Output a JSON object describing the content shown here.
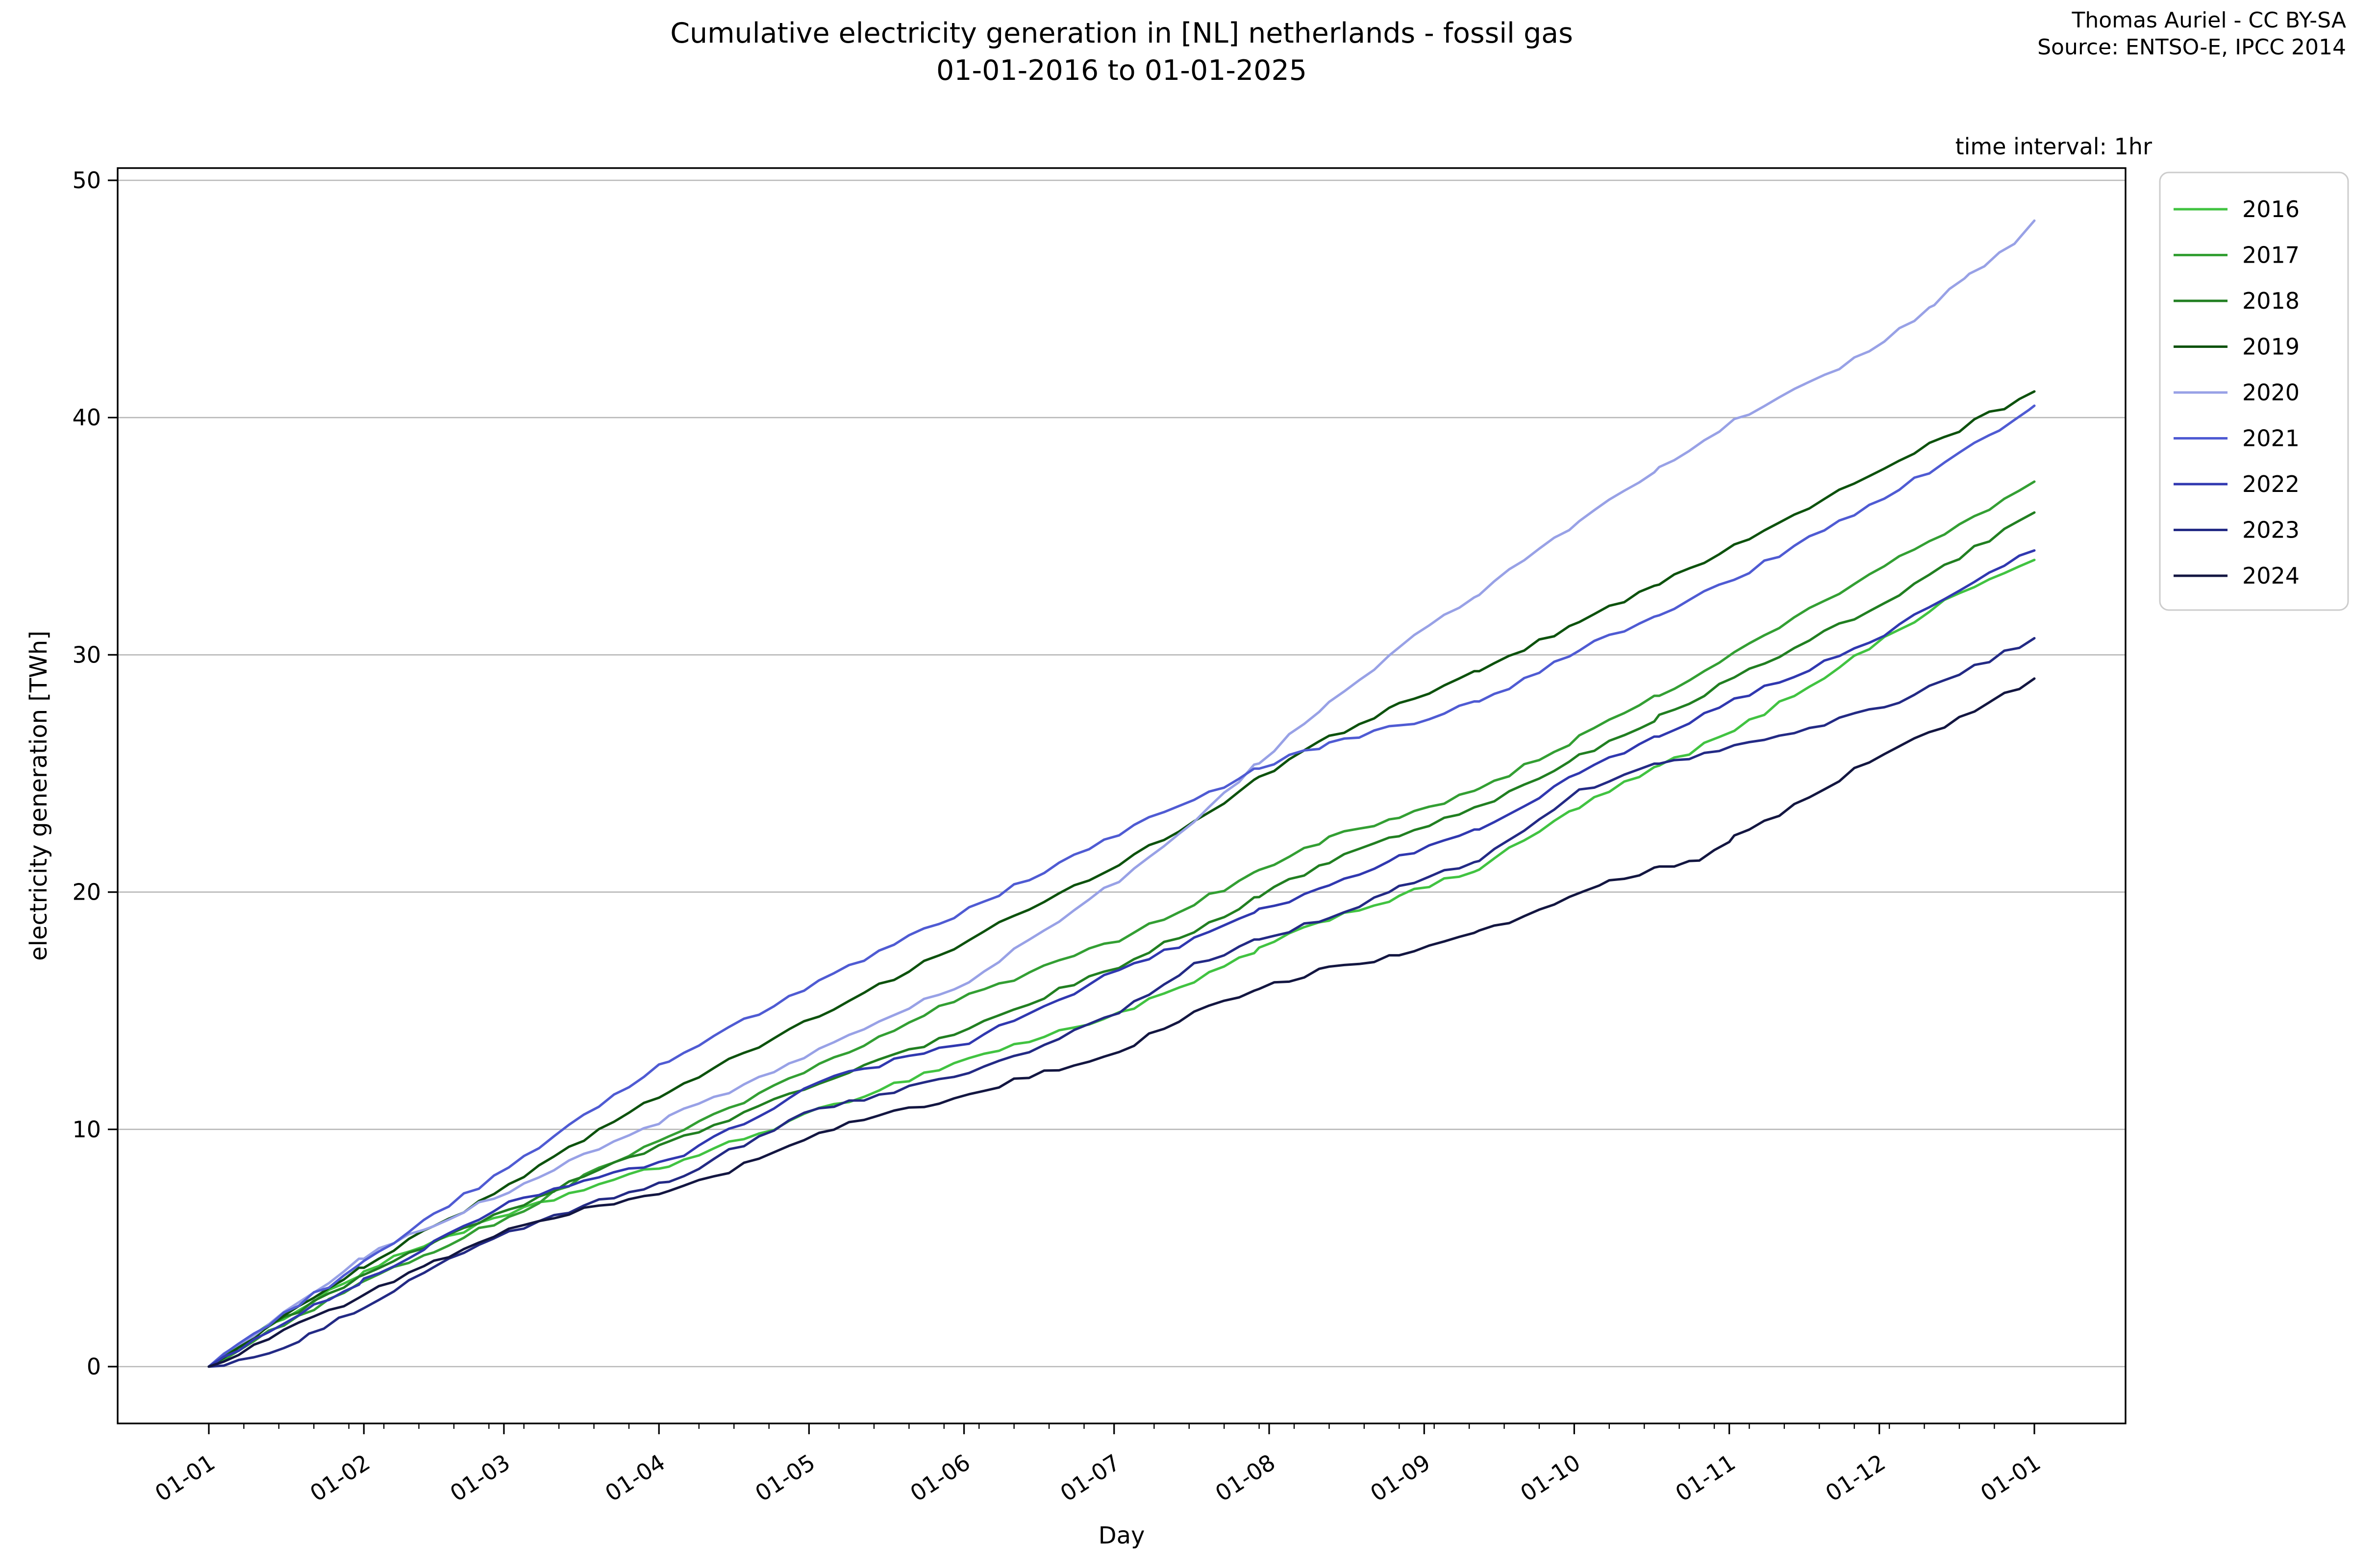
{
  "title": {
    "line1": "Cumulative electricity generation in [NL] netherlands - fossil gas",
    "line2": "01-01-2016 to 01-01-2025"
  },
  "attribution": {
    "line1": "Thomas Auriel - CC BY-SA",
    "line2": "Source: ENTSO-E, IPCC 2014"
  },
  "note": "time interval: 1hr",
  "colors": {
    "background": "#ffffff",
    "axis": "#000000",
    "grid": "#b8b8b8",
    "legend_border": "#cccccc",
    "text": "#000000"
  },
  "chart_data": {
    "type": "line",
    "title": "Cumulative electricity generation in [NL] netherlands - fossil gas 01-01-2016 to 01-01-2025",
    "xlabel": "Day",
    "ylabel": "electricity generation [TWh]",
    "grid": "horizontal",
    "legend_position": "upper-right-outside",
    "ylim": [
      -2.4,
      50.8
    ],
    "xlim_days": [
      -18.2,
      383.3
    ],
    "y_ticks": [
      0,
      10,
      20,
      30,
      40,
      50
    ],
    "x_tick_days": [
      0,
      31,
      59,
      90,
      120,
      151,
      181,
      212,
      243,
      273,
      304,
      334,
      365
    ],
    "x_tick_labels": [
      "01-01",
      "01-02",
      "01-03",
      "01-04",
      "01-05",
      "01-06",
      "01-07",
      "01-08",
      "01-09",
      "01-10",
      "01-11",
      "01-12",
      "01-01"
    ],
    "x_minor_tick_interval_days": 7,
    "x_unit": "day of year",
    "y_unit": "TWh",
    "series": [
      {
        "name": "2016",
        "color": "#41c341",
        "final_value": 34.0,
        "points": [
          [
            0,
            0
          ],
          [
            15,
            2.1
          ],
          [
            31,
            4.0
          ],
          [
            45,
            5.3
          ],
          [
            60,
            6.4
          ],
          [
            75,
            7.5
          ],
          [
            92,
            8.5
          ],
          [
            107,
            9.6
          ],
          [
            122,
            10.8
          ],
          [
            137,
            11.9
          ],
          [
            152,
            13.0
          ],
          [
            167,
            13.9
          ],
          [
            182,
            14.9
          ],
          [
            197,
            16.2
          ],
          [
            210,
            17.6
          ],
          [
            224,
            18.9
          ],
          [
            238,
            19.8
          ],
          [
            254,
            21.0
          ],
          [
            274,
            23.6
          ],
          [
            290,
            25.3
          ],
          [
            305,
            26.8
          ],
          [
            320,
            28.7
          ],
          [
            335,
            30.7
          ],
          [
            350,
            32.6
          ],
          [
            365,
            34.0
          ]
        ]
      },
      {
        "name": "2017",
        "color": "#339f33",
        "final_value": 37.3,
        "points": [
          [
            0,
            0
          ],
          [
            15,
            1.8
          ],
          [
            31,
            3.5
          ],
          [
            45,
            4.9
          ],
          [
            60,
            6.3
          ],
          [
            75,
            8.0
          ],
          [
            92,
            9.7
          ],
          [
            107,
            11.2
          ],
          [
            122,
            12.7
          ],
          [
            137,
            14.2
          ],
          [
            152,
            15.7
          ],
          [
            167,
            16.8
          ],
          [
            182,
            18.0
          ],
          [
            197,
            19.5
          ],
          [
            210,
            20.9
          ],
          [
            224,
            22.3
          ],
          [
            238,
            23.2
          ],
          [
            254,
            24.3
          ],
          [
            274,
            26.5
          ],
          [
            290,
            28.3
          ],
          [
            305,
            30.1
          ],
          [
            320,
            31.9
          ],
          [
            335,
            33.7
          ],
          [
            350,
            35.5
          ],
          [
            365,
            37.3
          ]
        ]
      },
      {
        "name": "2018",
        "color": "#217f21",
        "final_value": 36.0,
        "points": [
          [
            0,
            0
          ],
          [
            15,
            2.0
          ],
          [
            31,
            3.9
          ],
          [
            45,
            5.2
          ],
          [
            60,
            6.6
          ],
          [
            75,
            8.0
          ],
          [
            92,
            9.45
          ],
          [
            107,
            10.7
          ],
          [
            122,
            11.9
          ],
          [
            137,
            13.1
          ],
          [
            152,
            14.3
          ],
          [
            167,
            15.6
          ],
          [
            182,
            16.9
          ],
          [
            197,
            18.4
          ],
          [
            210,
            19.8
          ],
          [
            224,
            21.3
          ],
          [
            238,
            22.4
          ],
          [
            254,
            23.6
          ],
          [
            274,
            25.7
          ],
          [
            290,
            27.4
          ],
          [
            305,
            29.0
          ],
          [
            320,
            30.6
          ],
          [
            335,
            32.2
          ],
          [
            350,
            34.1
          ],
          [
            365,
            36.0
          ]
        ]
      },
      {
        "name": "2019",
        "color": "#0d520d",
        "final_value": 41.1,
        "points": [
          [
            0,
            0
          ],
          [
            15,
            2.1
          ],
          [
            31,
            4.2
          ],
          [
            45,
            5.9
          ],
          [
            60,
            7.6
          ],
          [
            75,
            9.6
          ],
          [
            92,
            11.6
          ],
          [
            107,
            13.2
          ],
          [
            122,
            14.8
          ],
          [
            137,
            16.4
          ],
          [
            152,
            18.0
          ],
          [
            167,
            19.6
          ],
          [
            182,
            21.2
          ],
          [
            197,
            23.0
          ],
          [
            210,
            24.8
          ],
          [
            224,
            26.5
          ],
          [
            238,
            27.9
          ],
          [
            254,
            29.3
          ],
          [
            274,
            31.4
          ],
          [
            290,
            33.0
          ],
          [
            305,
            34.6
          ],
          [
            320,
            36.2
          ],
          [
            335,
            37.9
          ],
          [
            350,
            39.5
          ],
          [
            365,
            41.1
          ]
        ]
      },
      {
        "name": "2020",
        "color": "#98a1e6",
        "final_value": 48.3,
        "points": [
          [
            0,
            0
          ],
          [
            15,
            2.3
          ],
          [
            31,
            4.6
          ],
          [
            45,
            6.0
          ],
          [
            60,
            7.4
          ],
          [
            75,
            8.9
          ],
          [
            92,
            10.5
          ],
          [
            107,
            11.9
          ],
          [
            122,
            13.3
          ],
          [
            137,
            14.8
          ],
          [
            152,
            16.3
          ],
          [
            167,
            18.4
          ],
          [
            182,
            20.5
          ],
          [
            197,
            23.0
          ],
          [
            210,
            25.5
          ],
          [
            224,
            28.0
          ],
          [
            238,
            30.3
          ],
          [
            254,
            32.6
          ],
          [
            274,
            35.6
          ],
          [
            290,
            37.9
          ],
          [
            305,
            39.9
          ],
          [
            320,
            41.4
          ],
          [
            335,
            43.2
          ],
          [
            345,
            44.8
          ],
          [
            352,
            46.0
          ],
          [
            358,
            46.9
          ],
          [
            362,
            47.5
          ],
          [
            365,
            48.3
          ]
        ]
      },
      {
        "name": "2021",
        "color": "#4f5bd3",
        "final_value": 40.5,
        "points": [
          [
            0,
            0
          ],
          [
            15,
            2.2
          ],
          [
            31,
            4.4
          ],
          [
            45,
            6.4
          ],
          [
            60,
            8.4
          ],
          [
            75,
            10.6
          ],
          [
            92,
            12.9
          ],
          [
            107,
            14.6
          ],
          [
            122,
            16.2
          ],
          [
            137,
            17.8
          ],
          [
            152,
            19.3
          ],
          [
            167,
            20.9
          ],
          [
            182,
            22.5
          ],
          [
            197,
            23.9
          ],
          [
            210,
            25.2
          ],
          [
            224,
            26.3
          ],
          [
            238,
            27.0
          ],
          [
            254,
            28.0
          ],
          [
            274,
            30.2
          ],
          [
            290,
            31.7
          ],
          [
            305,
            33.2
          ],
          [
            320,
            34.9
          ],
          [
            335,
            36.6
          ],
          [
            350,
            38.5
          ],
          [
            358,
            39.5
          ],
          [
            365,
            40.5
          ]
        ]
      },
      {
        "name": "2022",
        "color": "#3038b0",
        "final_value": 34.4,
        "points": [
          [
            0,
            0
          ],
          [
            15,
            1.9
          ],
          [
            31,
            3.6
          ],
          [
            45,
            5.2
          ],
          [
            60,
            6.9
          ],
          [
            75,
            7.8
          ],
          [
            92,
            8.65
          ],
          [
            107,
            10.3
          ],
          [
            122,
            12.0
          ],
          [
            137,
            12.9
          ],
          [
            152,
            13.7
          ],
          [
            167,
            15.2
          ],
          [
            182,
            16.7
          ],
          [
            197,
            18.0
          ],
          [
            210,
            19.2
          ],
          [
            224,
            20.3
          ],
          [
            238,
            21.5
          ],
          [
            254,
            22.6
          ],
          [
            274,
            25.0
          ],
          [
            290,
            26.6
          ],
          [
            305,
            28.1
          ],
          [
            320,
            29.4
          ],
          [
            335,
            30.8
          ],
          [
            350,
            32.8
          ],
          [
            365,
            34.4
          ]
        ]
      },
      {
        "name": "2023",
        "color": "#232a85",
        "final_value": 30.7,
        "points": [
          [
            0,
            0
          ],
          [
            6,
            0.25
          ],
          [
            12,
            0.5
          ],
          [
            20,
            1.3
          ],
          [
            31,
            2.5
          ],
          [
            45,
            4.2
          ],
          [
            60,
            5.7
          ],
          [
            75,
            6.8
          ],
          [
            92,
            7.8
          ],
          [
            107,
            9.4
          ],
          [
            122,
            10.9
          ],
          [
            137,
            11.6
          ],
          [
            152,
            12.3
          ],
          [
            167,
            13.6
          ],
          [
            182,
            14.9
          ],
          [
            197,
            16.9
          ],
          [
            210,
            18.0
          ],
          [
            224,
            18.9
          ],
          [
            238,
            20.2
          ],
          [
            254,
            21.3
          ],
          [
            274,
            24.3
          ],
          [
            290,
            25.4
          ],
          [
            305,
            26.1
          ],
          [
            320,
            26.9
          ],
          [
            335,
            27.8
          ],
          [
            350,
            29.2
          ],
          [
            365,
            30.7
          ]
        ]
      },
      {
        "name": "2024",
        "color": "#131641",
        "final_value": 29.0,
        "points": [
          [
            0,
            0
          ],
          [
            15,
            1.5
          ],
          [
            31,
            3.0
          ],
          [
            45,
            4.4
          ],
          [
            60,
            5.8
          ],
          [
            75,
            6.6
          ],
          [
            92,
            7.3
          ],
          [
            107,
            8.5
          ],
          [
            122,
            9.9
          ],
          [
            137,
            10.7
          ],
          [
            152,
            11.5
          ],
          [
            167,
            12.4
          ],
          [
            182,
            13.3
          ],
          [
            197,
            14.9
          ],
          [
            210,
            15.9
          ],
          [
            224,
            16.8
          ],
          [
            238,
            17.3
          ],
          [
            254,
            18.3
          ],
          [
            266,
            19.2
          ],
          [
            280,
            20.4
          ],
          [
            290,
            21.0
          ],
          [
            298,
            21.3
          ],
          [
            305,
            22.3
          ],
          [
            320,
            24.0
          ],
          [
            335,
            25.9
          ],
          [
            350,
            27.3
          ],
          [
            365,
            29.0
          ]
        ]
      }
    ]
  }
}
